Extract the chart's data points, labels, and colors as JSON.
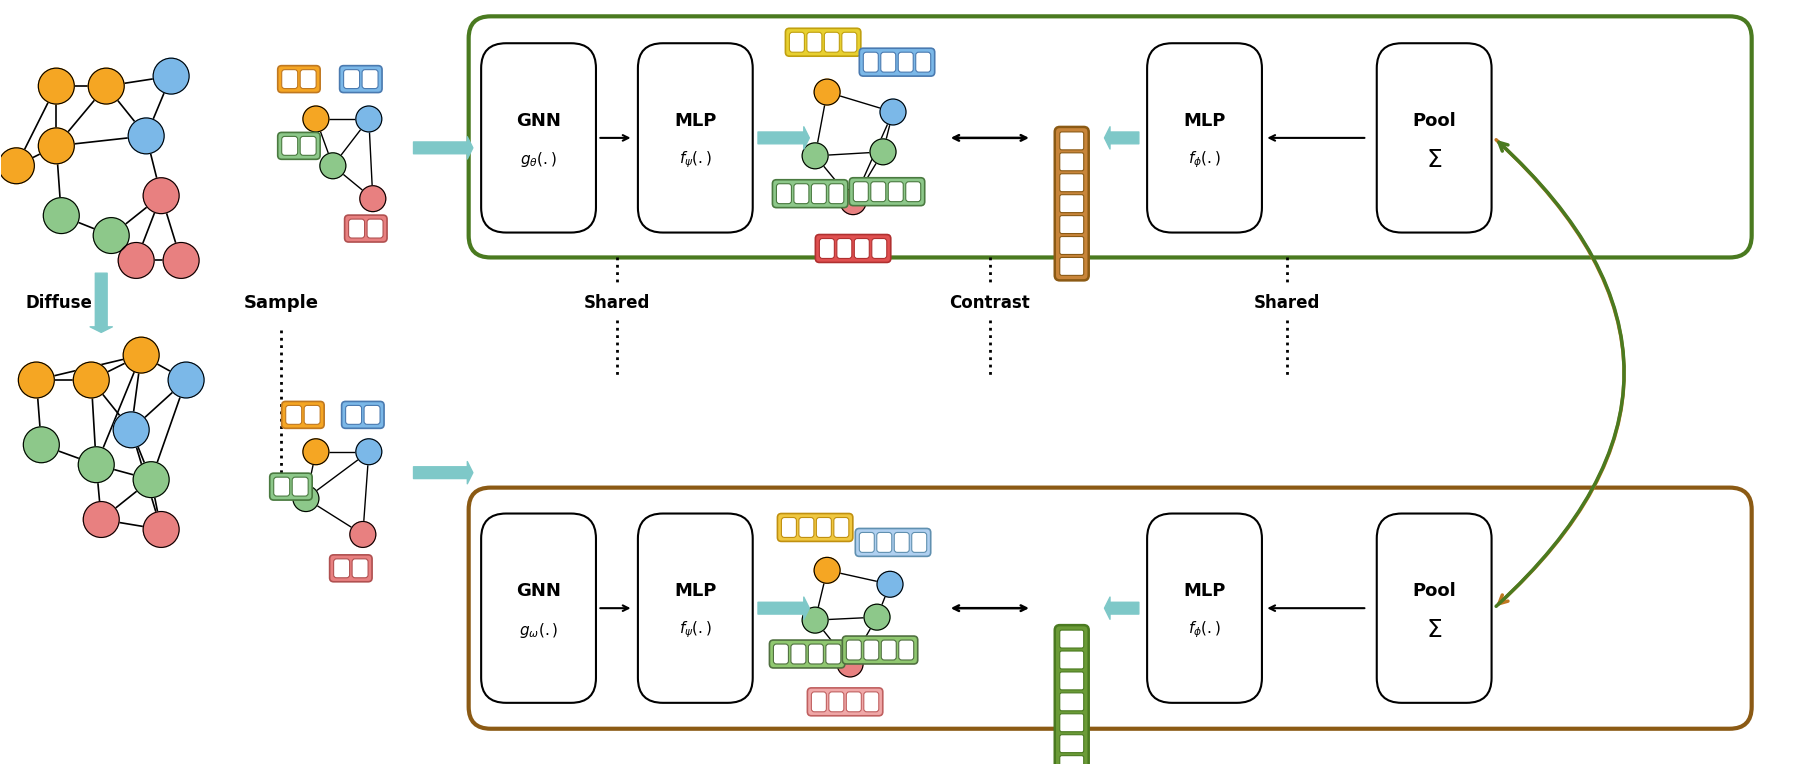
{
  "bg_color": "#ffffff",
  "node_colors": {
    "orange": "#F5A623",
    "blue": "#7BB8E8",
    "green": "#8DC88A",
    "red": "#E88080",
    "teal_arrow": "#7EC8C8"
  },
  "box_colors": {
    "orange": "#F5A623",
    "blue": "#7BB8E8",
    "green": "#8DC88A",
    "red": "#E88080",
    "orange_embed": "#D4A020",
    "green_embed": "#6B9B37",
    "brown_embed": "#8B6914"
  },
  "border_colors": {
    "outer_top": "#4A7A20",
    "outer_bottom": "#8B5A14"
  },
  "labels": {
    "diffuse": "Diffuse",
    "sample": "Sample",
    "shared_left": "Shared",
    "contrast": "Contrast",
    "shared_right": "Shared",
    "gnn_top": "GNN",
    "gnn_top_sub": "$g_{\\theta}(.)$",
    "gnn_bot": "GNN",
    "gnn_bot_sub": "$g_{\\omega}(.)$",
    "mlp_top_left": "MLP",
    "mlp_top_left_sub": "$f_{\\psi}(.)$",
    "mlp_bot_left": "MLP",
    "mlp_bot_left_sub": "$f_{\\psi}(.)$",
    "mlp_top_right": "MLP",
    "mlp_top_right_sub": "$f_{\\phi}(.)$",
    "mlp_bot_right": "MLP",
    "mlp_bot_right_sub": "$f_{\\phi}(.)$",
    "pool_top": "Pool",
    "pool_top_sub": "$\\Sigma$",
    "pool_bot": "Pool",
    "pool_bot_sub": "$\\Sigma$"
  }
}
